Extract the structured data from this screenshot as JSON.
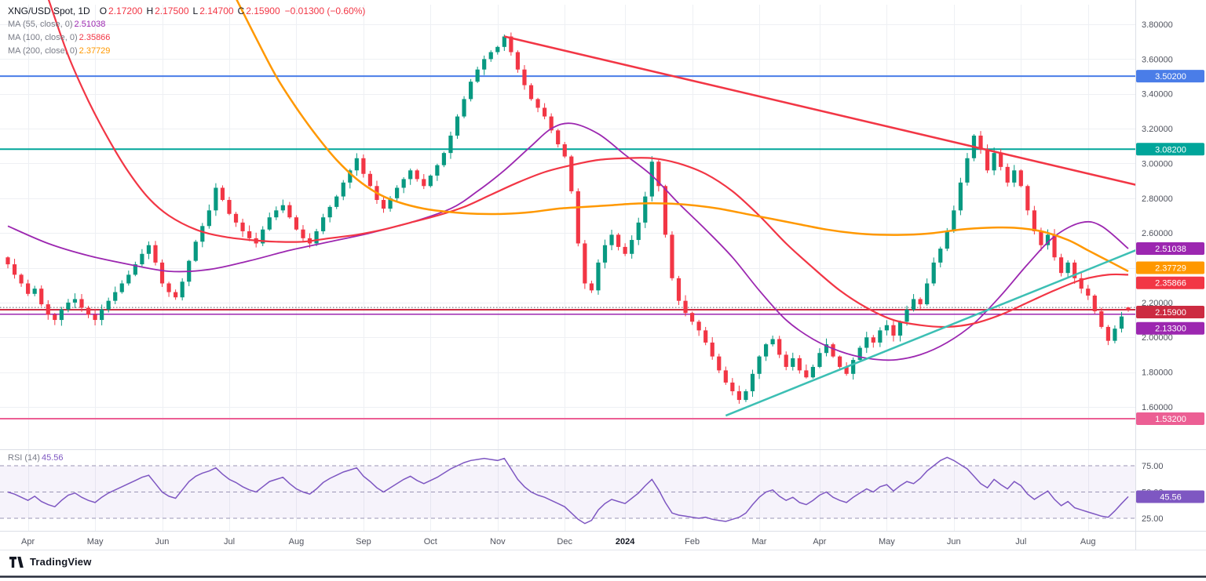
{
  "header": {
    "symbol": "XNG/USD Spot, 1D",
    "ohlc": {
      "o_label": "O",
      "o": "2.17200",
      "h_label": "H",
      "h": "2.17500",
      "l_label": "L",
      "l": "2.14700",
      "c_label": "C",
      "c": "2.15900",
      "change": "−0.01300 (−0.60%)"
    },
    "ma_rows": [
      {
        "label": "MA (55, close, 0)",
        "value": "2.51038",
        "color": "#9c27b0"
      },
      {
        "label": "MA (100, close, 0)",
        "value": "2.35866",
        "color": "#f23645"
      },
      {
        "label": "MA (200, close, 0)",
        "value": "2.37729",
        "color": "#ff9800"
      }
    ]
  },
  "rsi_legend": {
    "label": "RSI (14)",
    "value": "45.56",
    "color": "#7e57c2"
  },
  "price_axis": {
    "ticks": [
      {
        "label": "3.80000",
        "price": 3.8
      },
      {
        "label": "3.60000",
        "price": 3.6
      },
      {
        "label": "3.40000",
        "price": 3.4
      },
      {
        "label": "3.20000",
        "price": 3.2
      },
      {
        "label": "3.00000",
        "price": 3.0
      },
      {
        "label": "2.80000",
        "price": 2.8
      },
      {
        "label": "2.60000",
        "price": 2.6
      },
      {
        "label": "2.20000",
        "price": 2.2
      },
      {
        "label": "2.00000",
        "price": 2.0
      },
      {
        "label": "1.80000",
        "price": 1.8
      },
      {
        "label": "1.60000",
        "price": 1.6
      }
    ],
    "badges": [
      {
        "label": "3.50200",
        "price": 3.502,
        "color": "#4a7de8",
        "dy": 0
      },
      {
        "label": "3.08200",
        "price": 3.082,
        "color": "#00a59a",
        "dy": 0
      },
      {
        "label": "2.51038",
        "price": 2.51038,
        "color": "#9c27b0",
        "dy": 0
      },
      {
        "label": "2.37729",
        "price": 2.37729,
        "color": "#ff9800",
        "dy": -5
      },
      {
        "label": "2.35866",
        "price": 2.35866,
        "color": "#f23645",
        "dy": 10
      },
      {
        "label": "2.15900",
        "price": 2.159,
        "color": "#cc2b41",
        "dy": 3
      },
      {
        "label": "2.13300",
        "price": 2.133,
        "color": "#9c27b0",
        "dy": 18
      },
      {
        "label": "1.53200",
        "price": 1.532,
        "color": "#ec5f94",
        "dy": 0
      }
    ]
  },
  "rsi_axis": {
    "ticks": [
      {
        "label": "75.00",
        "v": 75
      },
      {
        "label": "50.00",
        "v": 50
      },
      {
        "label": "25.00",
        "v": 25
      }
    ],
    "badge": {
      "label": "45.56",
      "v": 45.56,
      "color": "#7e57c2"
    }
  },
  "time_axis": {
    "ticks": [
      {
        "label": "Apr",
        "i": 3
      },
      {
        "label": "May",
        "i": 13
      },
      {
        "label": "Jun",
        "i": 23
      },
      {
        "label": "Jul",
        "i": 33
      },
      {
        "label": "Aug",
        "i": 43
      },
      {
        "label": "Sep",
        "i": 53
      },
      {
        "label": "Oct",
        "i": 63
      },
      {
        "label": "Nov",
        "i": 73
      },
      {
        "label": "Dec",
        "i": 83
      },
      {
        "label": "2024",
        "i": 92,
        "bold": true
      },
      {
        "label": "Feb",
        "i": 102
      },
      {
        "label": "Mar",
        "i": 112
      },
      {
        "label": "Apr",
        "i": 121
      },
      {
        "label": "May",
        "i": 131
      },
      {
        "label": "Jun",
        "i": 141
      },
      {
        "label": "Jul",
        "i": 151
      },
      {
        "label": "Aug",
        "i": 161
      }
    ]
  },
  "footer": {
    "brand": "TradingView"
  },
  "chart_data": {
    "type": "candlestick",
    "title": "XNG/USD Spot, 1D",
    "x_unit": "index over Apr 2023 – Aug 2024 (approx. 3 calendar days per candle)",
    "ylim": [
      1.45,
      3.85
    ],
    "up_color": "#089981",
    "down_color": "#f23645",
    "closes": [
      2.42,
      2.36,
      2.31,
      2.25,
      2.28,
      2.19,
      2.13,
      2.1,
      2.16,
      2.2,
      2.22,
      2.17,
      2.13,
      2.1,
      2.16,
      2.21,
      2.26,
      2.31,
      2.36,
      2.42,
      2.48,
      2.53,
      2.43,
      2.31,
      2.26,
      2.23,
      2.32,
      2.44,
      2.55,
      2.64,
      2.73,
      2.86,
      2.79,
      2.71,
      2.66,
      2.61,
      2.57,
      2.54,
      2.62,
      2.69,
      2.73,
      2.76,
      2.69,
      2.62,
      2.57,
      2.54,
      2.61,
      2.69,
      2.75,
      2.81,
      2.89,
      2.96,
      3.03,
      2.94,
      2.87,
      2.79,
      2.74,
      2.8,
      2.86,
      2.91,
      2.96,
      2.91,
      2.87,
      2.93,
      2.99,
      3.06,
      3.16,
      3.27,
      3.37,
      3.47,
      3.54,
      3.6,
      3.64,
      3.67,
      3.73,
      3.64,
      3.54,
      3.45,
      3.37,
      3.32,
      3.27,
      3.19,
      3.11,
      3.04,
      2.84,
      2.54,
      2.31,
      2.27,
      2.43,
      2.53,
      2.59,
      2.52,
      2.48,
      2.56,
      2.66,
      2.81,
      3.01,
      2.87,
      2.59,
      2.34,
      2.21,
      2.14,
      2.09,
      2.04,
      1.97,
      1.89,
      1.81,
      1.74,
      1.69,
      1.64,
      1.69,
      1.79,
      1.89,
      1.96,
      1.99,
      1.9,
      1.83,
      1.88,
      1.81,
      1.77,
      1.83,
      1.91,
      1.96,
      1.89,
      1.83,
      1.79,
      1.87,
      1.94,
      2.0,
      1.97,
      2.04,
      2.07,
      2.01,
      2.09,
      2.16,
      2.22,
      2.19,
      2.31,
      2.43,
      2.51,
      2.61,
      2.73,
      2.89,
      3.03,
      3.16,
      3.08,
      2.96,
      3.06,
      2.98,
      2.89,
      2.96,
      2.87,
      2.73,
      2.61,
      2.53,
      2.59,
      2.46,
      2.37,
      2.43,
      2.34,
      2.28,
      2.24,
      2.15,
      2.06,
      1.98,
      2.05,
      2.12,
      2.16
    ],
    "last_ohlc": {
      "open": 2.172,
      "high": 2.175,
      "low": 2.147,
      "close": 2.159
    },
    "moving_averages": [
      {
        "name": "MA 55",
        "color": "#9c27b0",
        "width": 1.8,
        "current": 2.51038,
        "points": [
          [
            0,
            2.64
          ],
          [
            6,
            2.54
          ],
          [
            12,
            2.47
          ],
          [
            18,
            2.42
          ],
          [
            24,
            2.38
          ],
          [
            30,
            2.39
          ],
          [
            36,
            2.44
          ],
          [
            42,
            2.5
          ],
          [
            48,
            2.55
          ],
          [
            54,
            2.6
          ],
          [
            60,
            2.66
          ],
          [
            66,
            2.74
          ],
          [
            70,
            2.84
          ],
          [
            74,
            2.96
          ],
          [
            78,
            3.1
          ],
          [
            81,
            3.2
          ],
          [
            84,
            3.23
          ],
          [
            88,
            3.17
          ],
          [
            92,
            3.05
          ],
          [
            96,
            2.93
          ],
          [
            100,
            2.77
          ],
          [
            104,
            2.62
          ],
          [
            108,
            2.46
          ],
          [
            112,
            2.27
          ],
          [
            116,
            2.1
          ],
          [
            120,
            1.99
          ],
          [
            124,
            1.92
          ],
          [
            128,
            1.88
          ],
          [
            132,
            1.87
          ],
          [
            136,
            1.9
          ],
          [
            140,
            1.97
          ],
          [
            144,
            2.08
          ],
          [
            148,
            2.24
          ],
          [
            152,
            2.42
          ],
          [
            156,
            2.58
          ],
          [
            160,
            2.66
          ],
          [
            163,
            2.64
          ],
          [
            167,
            2.51
          ]
        ]
      },
      {
        "name": "MA 100",
        "color": "#f23645",
        "width": 2.2,
        "current": 2.35866,
        "points": [
          [
            6,
            3.95
          ],
          [
            9,
            3.62
          ],
          [
            12,
            3.36
          ],
          [
            15,
            3.14
          ],
          [
            18,
            2.95
          ],
          [
            21,
            2.8
          ],
          [
            24,
            2.7
          ],
          [
            28,
            2.62
          ],
          [
            32,
            2.58
          ],
          [
            36,
            2.56
          ],
          [
            40,
            2.55
          ],
          [
            44,
            2.55
          ],
          [
            48,
            2.57
          ],
          [
            52,
            2.59
          ],
          [
            56,
            2.62
          ],
          [
            60,
            2.66
          ],
          [
            64,
            2.7
          ],
          [
            68,
            2.75
          ],
          [
            72,
            2.82
          ],
          [
            76,
            2.89
          ],
          [
            80,
            2.95
          ],
          [
            84,
            2.99
          ],
          [
            88,
            3.02
          ],
          [
            92,
            3.03
          ],
          [
            96,
            3.03
          ],
          [
            100,
            3.0
          ],
          [
            104,
            2.94
          ],
          [
            108,
            2.84
          ],
          [
            112,
            2.7
          ],
          [
            116,
            2.54
          ],
          [
            120,
            2.4
          ],
          [
            124,
            2.27
          ],
          [
            128,
            2.17
          ],
          [
            132,
            2.1
          ],
          [
            136,
            2.07
          ],
          [
            140,
            2.06
          ],
          [
            144,
            2.08
          ],
          [
            148,
            2.13
          ],
          [
            152,
            2.2
          ],
          [
            156,
            2.27
          ],
          [
            160,
            2.33
          ],
          [
            164,
            2.36
          ],
          [
            167,
            2.36
          ]
        ]
      },
      {
        "name": "MA 200",
        "color": "#ff9800",
        "width": 2.5,
        "current": 2.37729,
        "points": [
          [
            34,
            3.95
          ],
          [
            37,
            3.72
          ],
          [
            40,
            3.5
          ],
          [
            43,
            3.32
          ],
          [
            46,
            3.16
          ],
          [
            49,
            3.02
          ],
          [
            52,
            2.91
          ],
          [
            55,
            2.83
          ],
          [
            58,
            2.78
          ],
          [
            62,
            2.74
          ],
          [
            66,
            2.72
          ],
          [
            70,
            2.71
          ],
          [
            74,
            2.71
          ],
          [
            78,
            2.72
          ],
          [
            82,
            2.74
          ],
          [
            86,
            2.75
          ],
          [
            90,
            2.76
          ],
          [
            94,
            2.77
          ],
          [
            98,
            2.77
          ],
          [
            102,
            2.76
          ],
          [
            106,
            2.74
          ],
          [
            110,
            2.71
          ],
          [
            114,
            2.68
          ],
          [
            118,
            2.65
          ],
          [
            122,
            2.62
          ],
          [
            126,
            2.6
          ],
          [
            130,
            2.59
          ],
          [
            134,
            2.59
          ],
          [
            138,
            2.6
          ],
          [
            142,
            2.62
          ],
          [
            146,
            2.63
          ],
          [
            150,
            2.63
          ],
          [
            154,
            2.61
          ],
          [
            158,
            2.56
          ],
          [
            161,
            2.5
          ],
          [
            164,
            2.44
          ],
          [
            167,
            2.38
          ]
        ]
      }
    ],
    "levels": [
      {
        "name": "resistance-3.502",
        "price": 3.502,
        "color": "#4a7de8",
        "width": 2,
        "style": "solid"
      },
      {
        "name": "resistance-3.082",
        "price": 3.082,
        "color": "#00a59a",
        "width": 2,
        "style": "solid"
      },
      {
        "name": "open-price-dotted",
        "price": 2.172,
        "color": "#5d6570",
        "width": 1,
        "style": "dotted"
      },
      {
        "name": "current-price-line",
        "price": 2.159,
        "color": "#cc2b41",
        "width": 2,
        "style": "solid"
      },
      {
        "name": "support-2.133",
        "price": 2.133,
        "color": "#9c27b0",
        "width": 1.5,
        "style": "solid"
      },
      {
        "name": "support-1.532",
        "price": 1.532,
        "color": "#ec5f94",
        "width": 2,
        "style": "solid"
      }
    ],
    "trendlines": [
      {
        "name": "descending-trendline",
        "from": [
          74,
          3.73
        ],
        "to": [
          170,
          2.86
        ],
        "color": "#f23645",
        "width": 2.5
      },
      {
        "name": "ascending-trendline",
        "from": [
          107,
          1.55
        ],
        "to": [
          170,
          2.53
        ],
        "color": "#3cbfb4",
        "width": 2.5
      }
    ],
    "rsi": {
      "color": "#7e57c2",
      "bands": [
        75,
        50,
        25
      ],
      "band_fill": "rgba(126,87,194,0.07)",
      "current": 45.56,
      "values": [
        50,
        48,
        45,
        42,
        46,
        41,
        38,
        36,
        42,
        47,
        49,
        45,
        42,
        40,
        45,
        49,
        52,
        55,
        58,
        61,
        64,
        66,
        58,
        50,
        46,
        44,
        52,
        60,
        65,
        68,
        70,
        73,
        67,
        62,
        59,
        55,
        52,
        50,
        55,
        60,
        62,
        64,
        58,
        53,
        50,
        48,
        53,
        59,
        63,
        66,
        69,
        71,
        73,
        65,
        60,
        54,
        50,
        54,
        58,
        62,
        65,
        61,
        58,
        61,
        64,
        68,
        72,
        75,
        78,
        80,
        81,
        82,
        81,
        80,
        82,
        72,
        62,
        55,
        50,
        47,
        45,
        42,
        39,
        36,
        30,
        24,
        20,
        23,
        33,
        39,
        43,
        41,
        39,
        44,
        49,
        56,
        62,
        52,
        40,
        30,
        28,
        27,
        26,
        25,
        26,
        24,
        23,
        22,
        24,
        26,
        30,
        38,
        45,
        50,
        52,
        46,
        42,
        45,
        40,
        38,
        42,
        47,
        50,
        45,
        42,
        40,
        45,
        49,
        53,
        50,
        55,
        57,
        51,
        56,
        60,
        58,
        63,
        70,
        75,
        80,
        83,
        80,
        76,
        72,
        65,
        58,
        54,
        62,
        57,
        53,
        60,
        56,
        48,
        43,
        47,
        51,
        43,
        37,
        41,
        35,
        33,
        31,
        29,
        27,
        26,
        32,
        39,
        45.56
      ]
    }
  }
}
